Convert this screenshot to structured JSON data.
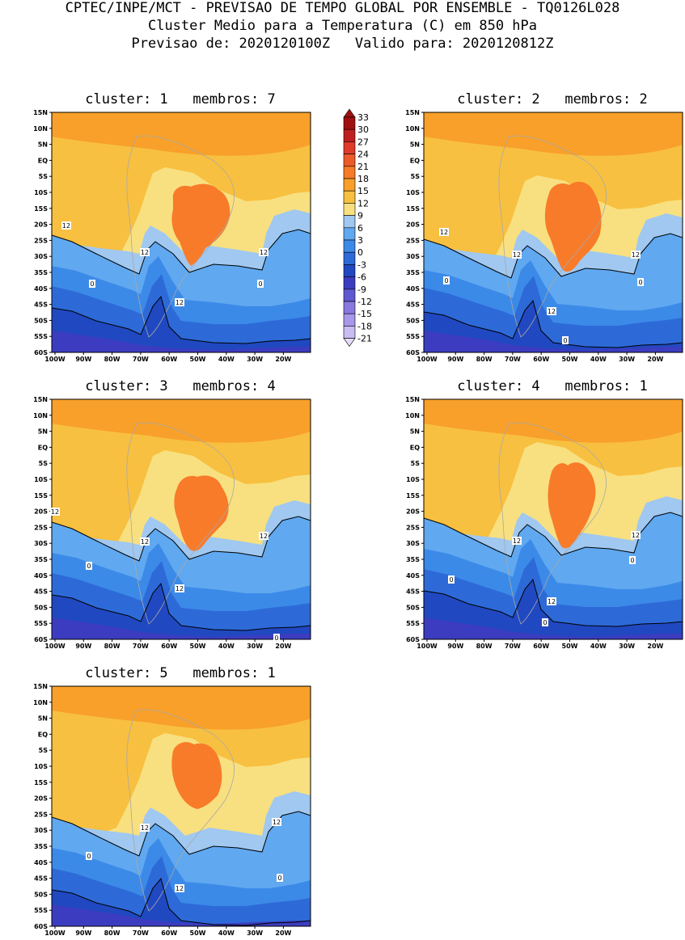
{
  "header": {
    "line1": "CPTEC/INPE/MCT - PREVISAO DE TEMPO GLOBAL POR ENSEMBLE - TQ0126L028",
    "line2": "Cluster Medio para a Temperatura (C) em 850 hPa",
    "line3": "Previsao de: 2020120100Z   Valido para: 2020120812Z"
  },
  "axes": {
    "lat_labels": [
      "15N",
      "10N",
      "5N",
      "EQ",
      "5S",
      "10S",
      "15S",
      "20S",
      "25S",
      "30S",
      "35S",
      "40S",
      "45S",
      "50S",
      "55S",
      "60S"
    ],
    "lon_labels": [
      "100W",
      "90W",
      "80W",
      "70W",
      "60W",
      "50W",
      "40W",
      "30W",
      "20W"
    ]
  },
  "colorbar": {
    "values": [
      "33",
      "30",
      "27",
      "24",
      "21",
      "18",
      "15",
      "12",
      "9",
      "6",
      "3",
      "0",
      "-3",
      "-6",
      "-9",
      "-12",
      "-15",
      "-18",
      "-21"
    ],
    "colors": [
      "#a01010",
      "#c01f1f",
      "#e03a2a",
      "#ee5a2a",
      "#f87b2a",
      "#f8a02a",
      "#f8c040",
      "#f8e080",
      "#a0c8f0",
      "#60a8f0",
      "#3c8ae8",
      "#2d6ad8",
      "#2048c0",
      "#3c3cc0",
      "#6058d0",
      "#8878e0",
      "#a898ea",
      "#c8bcf2",
      "#e4dcfa"
    ]
  },
  "panels": [
    {
      "title": "cluster: 1   membros: 7",
      "c12_labels": [
        "12",
        "12",
        "12",
        "12"
      ],
      "c0_labels": [
        "0",
        "0"
      ]
    },
    {
      "title": "cluster: 2   membros: 2",
      "c12_labels": [
        "12",
        "12",
        "12",
        "12"
      ],
      "c0_labels": [
        "0",
        "0",
        "0"
      ]
    },
    {
      "title": "cluster: 3   membros: 4",
      "c12_labels": [
        "12",
        "12",
        "12",
        "12"
      ],
      "c0_labels": [
        "0",
        "0"
      ]
    },
    {
      "title": "cluster: 4   membros: 1",
      "c12_labels": [
        "12",
        "12",
        "12"
      ],
      "c0_labels": [
        "0",
        "0",
        "0"
      ]
    },
    {
      "title": "cluster: 5   membros: 1",
      "c12_labels": [
        "12",
        "12",
        "12"
      ],
      "c0_labels": [
        "0",
        "0"
      ]
    }
  ]
}
